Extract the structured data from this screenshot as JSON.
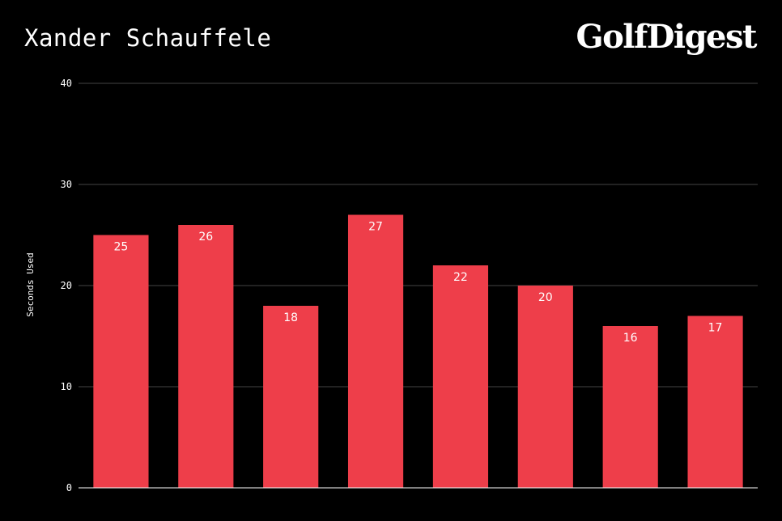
{
  "header": {
    "logo_text": "GolfDigest"
  },
  "colors": {
    "background": "#000000",
    "bar": "#ee3e4a",
    "grid": "#444444",
    "axis": "#ffffff",
    "text": "#ffffff"
  },
  "chart_data": {
    "type": "bar",
    "title": "Xander Schauffele",
    "xlabel": "",
    "ylabel": "Seconds Used",
    "ylim": [
      0,
      40
    ],
    "yticks": [
      0,
      10,
      20,
      30,
      40
    ],
    "categories": [
      "",
      "",
      "",
      "",
      "",
      "",
      "",
      ""
    ],
    "values": [
      25,
      26,
      18,
      27,
      22,
      20,
      16,
      17
    ],
    "data_labels": true,
    "grid": true,
    "legend": "none"
  }
}
